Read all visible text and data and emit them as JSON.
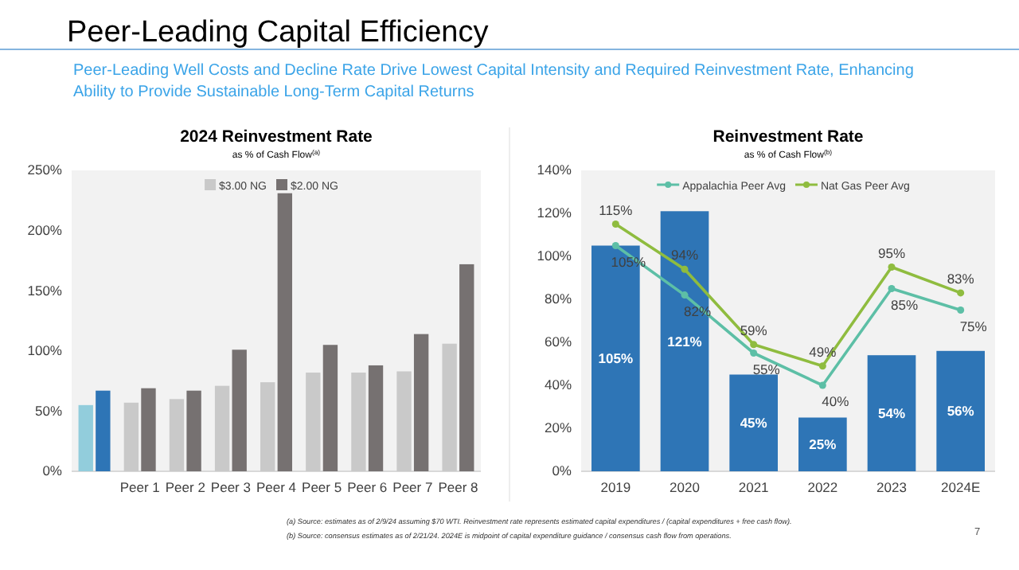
{
  "chart_data": [
    {
      "type": "bar",
      "title": "2024 Reinvestment Rate",
      "subtitle": "as % of Cash Flow$^{(a)}$",
      "annotations": [
        "Peer-Leading Capital Efficiency",
        "Peer-Leading Well Costs and Decline Rate Drive Lowest Capital Intensity and Required Reinvestment Rate, Enhancing Ability to Provide Sustainable Long-Term Capital Returns"
      ],
      "categories": [
        null,
        "Peer 1",
        "Peer 2",
        "Peer 3",
        "Peer 4",
        "Peer 5",
        "Peer 6",
        "Peer 7",
        "Peer 8"
      ],
      "series": [
        {
          "name": "$3.00 NG",
          "color": "#c9c9c9",
          "colors": [
            "#92cddc",
            "#c9c9c9",
            "#c9c9c9",
            "#c9c9c9",
            "#c9c9c9",
            "#c9c9c9",
            "#c9c9c9",
            "#c9c9c9",
            "#c9c9c9"
          ],
          "values": [
            55,
            57,
            60,
            71,
            74,
            82,
            82,
            83,
            106
          ]
        },
        {
          "name": "$2.00 NG",
          "color": "#767171",
          "colors": [
            "#2e75b6",
            "#767171",
            "#767171",
            "#767171",
            "#767171",
            "#767171",
            "#767171",
            "#767171",
            "#767171"
          ],
          "values": [
            67,
            69,
            67,
            101,
            231,
            105,
            88,
            114,
            172
          ]
        }
      ],
      "ylim": [
        0,
        250
      ],
      "yticks": [
        {
          "value": 0,
          "label": "0%"
        },
        {
          "value": 50,
          "label": "50%"
        },
        {
          "value": 100,
          "label": "100%"
        },
        {
          "value": 150,
          "label": "150%"
        },
        {
          "value": 200,
          "label": "200%"
        },
        {
          "value": 250,
          "label": "250%"
        }
      ],
      "legend": "top",
      "grid": false
    },
    {
      "type": "bar",
      "title": "Reinvestment Rate",
      "subtitle": "as % of Cash Flow$^{(b)}$",
      "annotations": [
        "(a) Source: estimates as of 2/9/24 assuming $70 WTI. Reinvestment rate represents estimated capital expenditures / (capital expenditures + free cash flow).",
        "(b) Source: consensus estimates as of 2/21/24. 2024E is midpoint of capital expenditure guidance / consensus cash flow from operations.",
        "7"
      ],
      "categories": [
        "2019",
        "2020",
        "2021",
        "2022",
        "2023",
        "2024E"
      ],
      "series": [
        {
          "color": "#2e75b6",
          "values": [
            105,
            121,
            45,
            25,
            54,
            56
          ],
          "value_labels": [
            "105%",
            "121%",
            "45%",
            "25%",
            "54%",
            "56%"
          ]
        },
        {
          "type": "line",
          "name": "Appalachia Peer Avg",
          "color": "#5dbfa6",
          "values": [
            105,
            82,
            55,
            40,
            85,
            75
          ],
          "value_labels": [
            "105%",
            "82%",
            "55%",
            "40%",
            "85%",
            "75%"
          ]
        },
        {
          "type": "line",
          "name": "Nat Gas Peer Avg",
          "color": "#8fbc3f",
          "values": [
            115,
            94,
            59,
            49,
            95,
            83
          ],
          "value_labels": [
            "115%",
            "94%",
            "59%",
            "49%",
            "95%",
            "83%"
          ]
        }
      ],
      "ylim": [
        0,
        140
      ],
      "yticks": [
        {
          "value": 0,
          "label": "0%"
        },
        {
          "value": 20,
          "label": "20%"
        },
        {
          "value": 40,
          "label": "40%"
        },
        {
          "value": 60,
          "label": "60%"
        },
        {
          "value": 80,
          "label": "80%"
        },
        {
          "value": 100,
          "label": "100%"
        },
        {
          "value": 120,
          "label": "120%"
        },
        {
          "value": 140,
          "label": "140%"
        }
      ],
      "marker": "circle",
      "line_style": "solid",
      "legend": "top",
      "grid": false
    }
  ]
}
